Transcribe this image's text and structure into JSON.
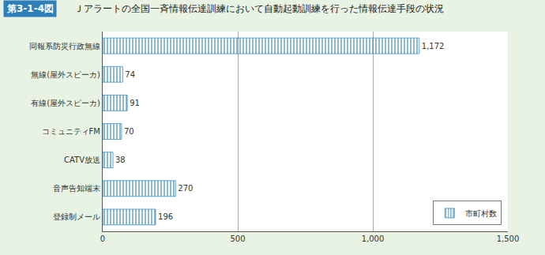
{
  "chart_data": {
    "type": "bar",
    "orientation": "horizontal",
    "title": "第3-1-4図",
    "subtitle": "Ｊアラートの全国一斉情報伝達訓練において自動起動訓練を行った情報伝達手段の状況",
    "categories": [
      "同報系防災行政無線",
      "無線(屋外スピーカ)",
      "有線(屋外スピーカ)",
      "コミュニティFM",
      "CATV放送",
      "音声告知端末",
      "登録制メール"
    ],
    "series": [
      {
        "name": "市町村数",
        "color": "#8fcbe6",
        "values": [
          1172,
          74,
          91,
          70,
          38,
          270,
          196
        ],
        "value_labels": [
          "1,172",
          "74",
          "91",
          "70",
          "38",
          "270",
          "196"
        ]
      }
    ],
    "xlim": [
      0,
      1500
    ],
    "xticks": [
      0,
      500,
      {
        "value": 1000,
        "label": "1,000"
      },
      {
        "value": 1500,
        "label": "1,500"
      }
    ],
    "grid": true,
    "data_labels": true,
    "legend": "lower right"
  }
}
